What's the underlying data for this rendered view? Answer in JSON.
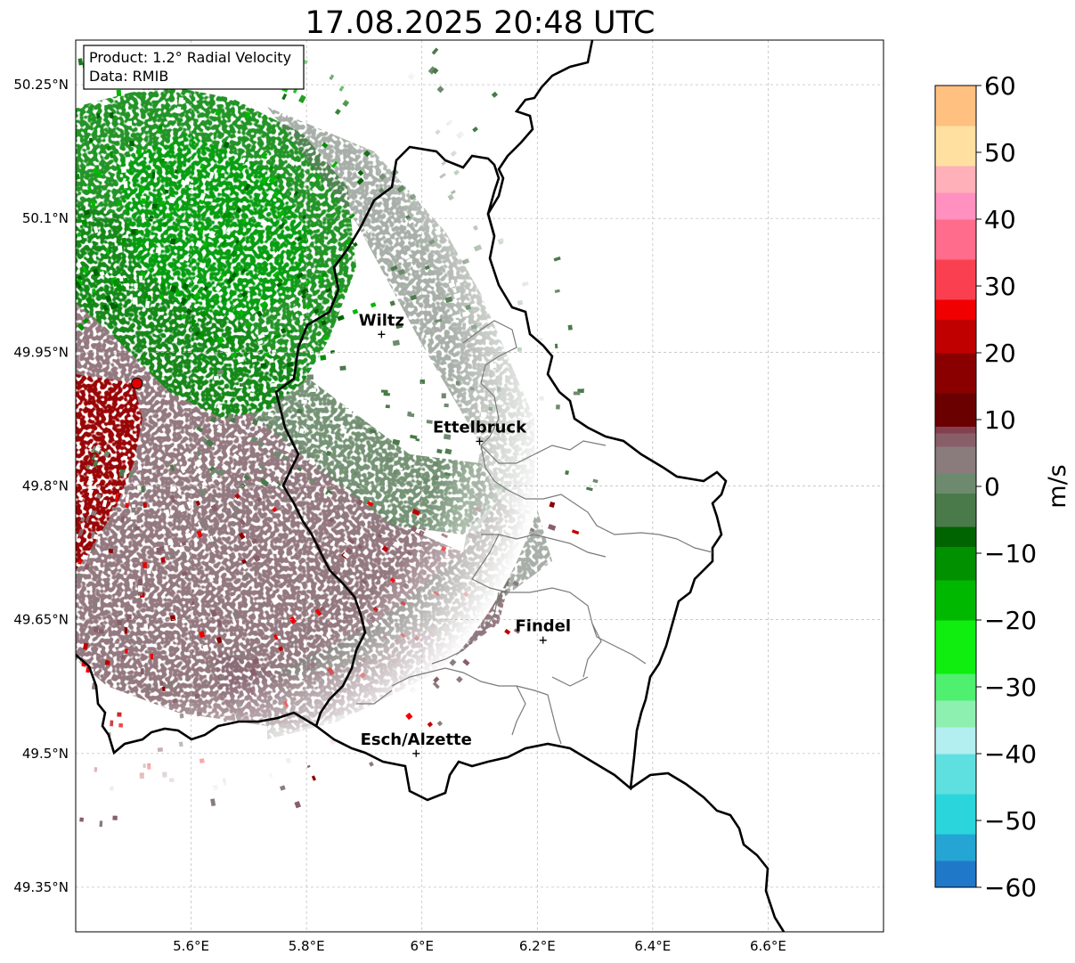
{
  "title": "17.08.2025 20:48 UTC",
  "info_box": {
    "product": "Product: 1.2° Radial Velocity",
    "data": "Data: RMIB"
  },
  "map": {
    "lon_range": [
      5.4,
      6.8
    ],
    "lat_range": [
      49.3,
      50.3
    ],
    "lon_ticks": [
      {
        "value": 5.6,
        "label": "5.6°E"
      },
      {
        "value": 5.8,
        "label": "5.8°E"
      },
      {
        "value": 6.0,
        "label": "6°E"
      },
      {
        "value": 6.2,
        "label": "6.2°E"
      },
      {
        "value": 6.4,
        "label": "6.4°E"
      },
      {
        "value": 6.6,
        "label": "6.6°E"
      }
    ],
    "lat_ticks": [
      {
        "value": 50.25,
        "label": "50.25°N"
      },
      {
        "value": 50.1,
        "label": "50.1°N"
      },
      {
        "value": 49.95,
        "label": "49.95°N"
      },
      {
        "value": 49.8,
        "label": "49.8°N"
      },
      {
        "value": 49.65,
        "label": "49.65°N"
      },
      {
        "value": 49.5,
        "label": "49.5°N"
      },
      {
        "value": 49.35,
        "label": "49.35°N"
      }
    ],
    "gridlines": true,
    "radar_site": {
      "lon": 5.506,
      "lat": 49.915,
      "color": "#e00000"
    },
    "cities": [
      {
        "name": "Wiltz",
        "lon": 5.93,
        "lat": 49.97
      },
      {
        "name": "Ettelbruck",
        "lon": 6.1,
        "lat": 49.85
      },
      {
        "name": "Findel",
        "lon": 6.21,
        "lat": 49.627
      },
      {
        "name": "Esch/Alzette",
        "lon": 5.99,
        "lat": 49.5
      }
    ]
  },
  "colorbar": {
    "label": "m/s",
    "min": -60,
    "max": 60,
    "ticks": [
      {
        "value": 60,
        "label": "60"
      },
      {
        "value": 50,
        "label": "50"
      },
      {
        "value": 40,
        "label": "40"
      },
      {
        "value": 30,
        "label": "30"
      },
      {
        "value": 20,
        "label": "20"
      },
      {
        "value": 10,
        "label": "10"
      },
      {
        "value": 0,
        "label": "0"
      },
      {
        "value": -10,
        "label": "−10"
      },
      {
        "value": -20,
        "label": "−20"
      },
      {
        "value": -30,
        "label": "−30"
      },
      {
        "value": -40,
        "label": "−40"
      },
      {
        "value": -50,
        "label": "−50"
      },
      {
        "value": -60,
        "label": "−60"
      }
    ],
    "stops": [
      {
        "value": -60,
        "color": "#1f78c8"
      },
      {
        "value": -56,
        "color": "#25a5d4"
      },
      {
        "value": -52,
        "color": "#2ad6dc"
      },
      {
        "value": -46,
        "color": "#5fe0e0"
      },
      {
        "value": -40,
        "color": "#b3eef0"
      },
      {
        "value": -36,
        "color": "#8ef0b0"
      },
      {
        "value": -32,
        "color": "#4ff070"
      },
      {
        "value": -28,
        "color": "#10ee10"
      },
      {
        "value": -20,
        "color": "#00b800"
      },
      {
        "value": -14,
        "color": "#009000"
      },
      {
        "value": -9,
        "color": "#006400"
      },
      {
        "value": -6,
        "color": "#4a7a4a"
      },
      {
        "value": -1,
        "color": "#6e8a6e"
      },
      {
        "value": 2,
        "color": "#8a7c7c"
      },
      {
        "value": 6,
        "color": "#885f68"
      },
      {
        "value": 8,
        "color": "#854050"
      },
      {
        "value": 9,
        "color": "#6a0000"
      },
      {
        "value": 14,
        "color": "#8a0000"
      },
      {
        "value": 20,
        "color": "#c00000"
      },
      {
        "value": 25,
        "color": "#f00000"
      },
      {
        "value": 28,
        "color": "#fa4050"
      },
      {
        "value": 34,
        "color": "#ff6c8c"
      },
      {
        "value": 40,
        "color": "#ff90c0"
      },
      {
        "value": 44,
        "color": "#ffb0b8"
      },
      {
        "value": 48,
        "color": "#ffe0a0"
      },
      {
        "value": 54,
        "color": "#ffc080"
      },
      {
        "value": 60,
        "color": "#ffa050"
      }
    ]
  }
}
